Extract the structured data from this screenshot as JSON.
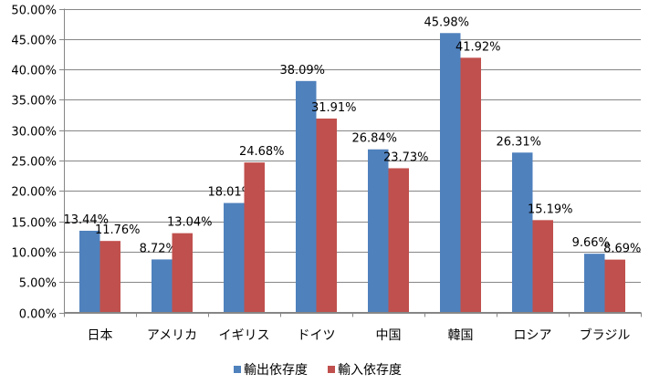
{
  "chart_data": {
    "type": "bar",
    "categories": [
      "日本",
      "アメリカ",
      "イギリス",
      "ドイツ",
      "中国",
      "韓国",
      "ロシア",
      "ブラジル"
    ],
    "series": [
      {
        "name": "輸出依存度",
        "color": "#4F81BD",
        "values": [
          13.44,
          8.72,
          18.01,
          38.09,
          26.84,
          45.98,
          26.31,
          9.66
        ]
      },
      {
        "name": "輸入依存度",
        "color": "#C0504D",
        "values": [
          11.76,
          13.04,
          24.68,
          31.91,
          23.73,
          41.92,
          15.19,
          8.69
        ]
      }
    ],
    "ylim": [
      0,
      50
    ],
    "yticks": [
      "0.00%",
      "5.00%",
      "10.00%",
      "15.00%",
      "20.00%",
      "25.00%",
      "30.00%",
      "35.00%",
      "40.00%",
      "45.00%",
      "50.00%"
    ],
    "grid": true,
    "legend": "bottom",
    "title": "",
    "xlabel": "",
    "ylabel": ""
  }
}
